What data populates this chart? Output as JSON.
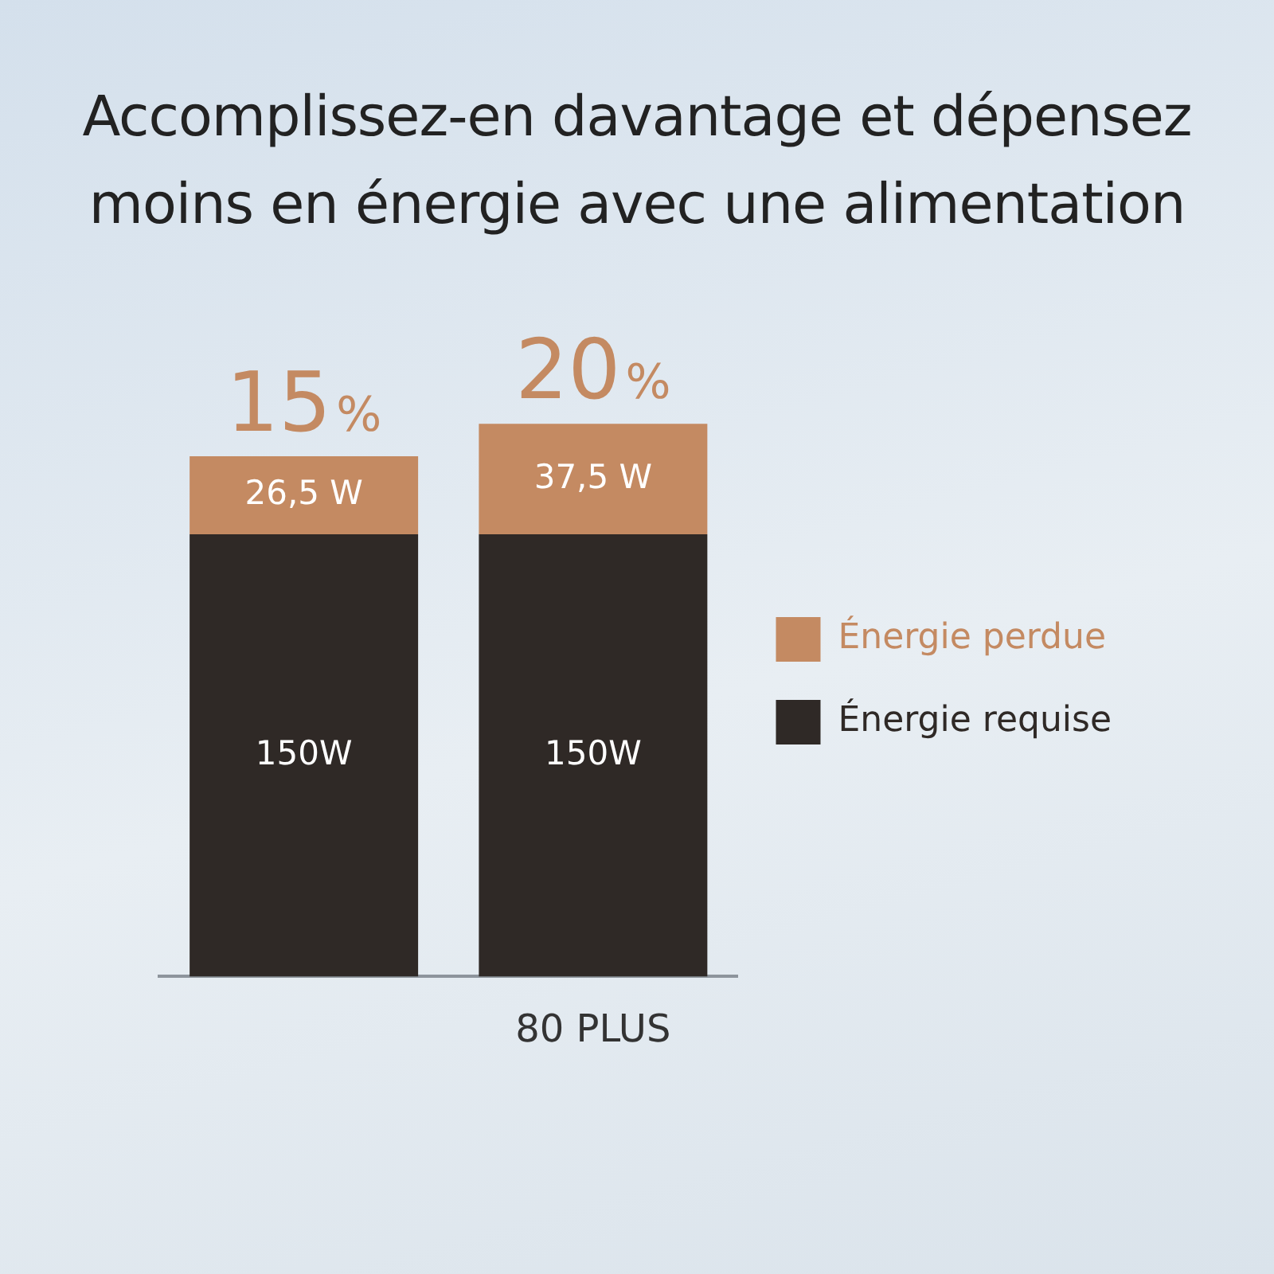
{
  "chart_data": {
    "type": "bar",
    "title": "Accomplissez-en davantage et dépensez moins en énergie avec une alimentation",
    "categories": [
      null,
      "80 PLUS"
    ],
    "stacked": true,
    "series": [
      {
        "name": "Énergie requise",
        "color": "#2f2926",
        "values": [
          150,
          150
        ],
        "value_labels": [
          "150W",
          "150W"
        ]
      },
      {
        "name": "Énergie perdue",
        "color": "#c48a62",
        "values": [
          26.5,
          37.5
        ],
        "value_labels": [
          "26,5 W",
          "37,5 W"
        ]
      }
    ],
    "tick_labels": "x",
    "legend": "right",
    "grid": false,
    "annotations": [
      {
        "text": "15%",
        "y": 176.5
      },
      {
        "text": "20%",
        "x": "80 PLUS",
        "y": 187.5
      }
    ]
  }
}
